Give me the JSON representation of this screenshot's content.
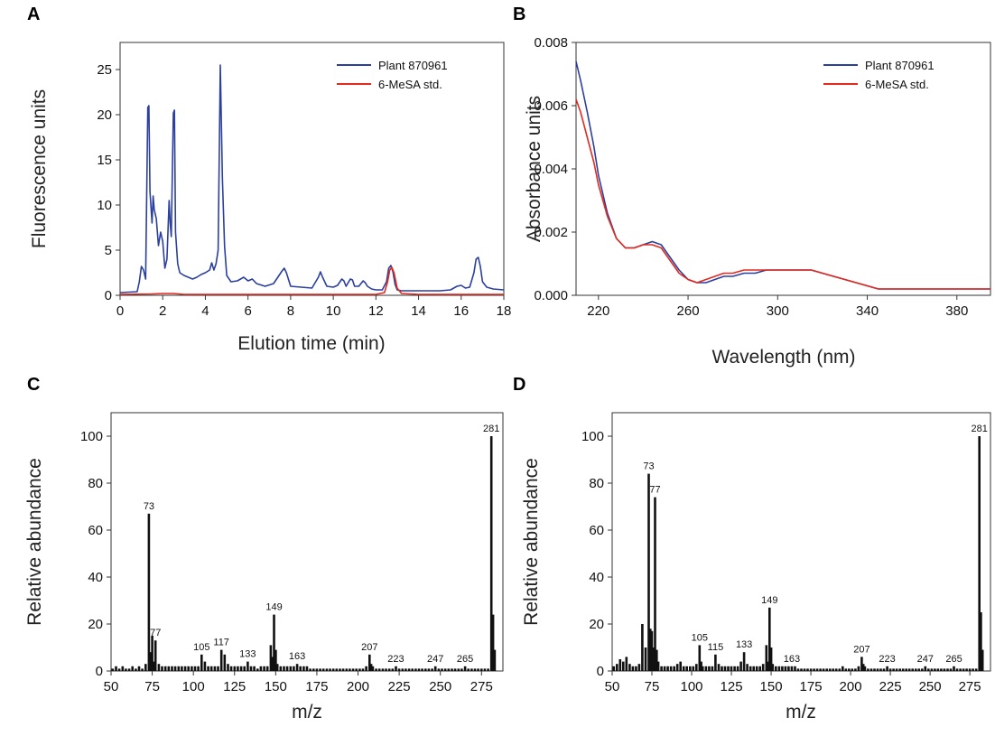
{
  "chart_data": [
    {
      "id": "A",
      "panel_label": "A",
      "type": "line",
      "xlabel": "Elution time (min)",
      "ylabel": "Fluorescence units",
      "xlim": [
        0,
        18
      ],
      "ylim": [
        0,
        28
      ],
      "xticks": [
        "0",
        "2",
        "4",
        "6",
        "8",
        "10",
        "12",
        "14",
        "16",
        "18"
      ],
      "yticks": [
        "0",
        "5",
        "10",
        "15",
        "20",
        "25"
      ],
      "legend_position": "top-right",
      "series": [
        {
          "name": "Plant 870961",
          "color": "#2b3f9e",
          "x": [
            0,
            0.8,
            0.9,
            1.0,
            1.1,
            1.2,
            1.3,
            1.35,
            1.4,
            1.5,
            1.55,
            1.6,
            1.7,
            1.8,
            1.9,
            2.0,
            2.1,
            2.2,
            2.3,
            2.35,
            2.4,
            2.5,
            2.55,
            2.6,
            2.7,
            2.8,
            3.0,
            3.2,
            3.4,
            3.6,
            3.8,
            4.0,
            4.2,
            4.3,
            4.4,
            4.5,
            4.6,
            4.7,
            4.8,
            4.9,
            5.0,
            5.2,
            5.5,
            5.8,
            6.0,
            6.2,
            6.4,
            6.8,
            7.2,
            7.6,
            7.7,
            7.8,
            8.0,
            8.5,
            9.0,
            9.3,
            9.4,
            9.5,
            9.7,
            10.0,
            10.2,
            10.4,
            10.5,
            10.6,
            10.8,
            10.9,
            11.0,
            11.2,
            11.4,
            11.5,
            11.6,
            11.8,
            12.0,
            12.3,
            12.5,
            12.6,
            12.7,
            12.8,
            12.9,
            13.0,
            13.2,
            13.5,
            14.0,
            14.5,
            15.0,
            15.5,
            15.8,
            16.0,
            16.2,
            16.4,
            16.6,
            16.7,
            16.8,
            16.9,
            17.0,
            17.2,
            17.5,
            18.0
          ],
          "values": [
            0.3,
            0.4,
            1.5,
            3.2,
            2.8,
            1.8,
            20.8,
            21.0,
            11.5,
            8.0,
            11.0,
            9.5,
            8.5,
            5.5,
            7.0,
            6.0,
            3.0,
            4.0,
            10.5,
            8.0,
            6.5,
            20.2,
            20.5,
            7.0,
            3.5,
            2.5,
            2.2,
            2.0,
            1.8,
            2.0,
            2.3,
            2.5,
            2.8,
            3.6,
            2.8,
            3.5,
            5.0,
            25.5,
            13.0,
            5.5,
            2.2,
            1.5,
            1.6,
            2.0,
            1.6,
            1.8,
            1.3,
            1.0,
            1.3,
            2.7,
            3.0,
            2.5,
            1.0,
            0.9,
            0.8,
            2.0,
            2.6,
            2.0,
            1.0,
            0.9,
            1.1,
            1.8,
            1.6,
            1.0,
            1.8,
            1.7,
            1.0,
            1.0,
            1.6,
            1.4,
            1.0,
            0.7,
            0.6,
            0.6,
            1.5,
            3.0,
            3.3,
            2.6,
            1.2,
            0.6,
            0.5,
            0.5,
            0.5,
            0.5,
            0.5,
            0.6,
            1.0,
            1.1,
            0.8,
            0.9,
            2.5,
            4.0,
            4.2,
            3.2,
            1.5,
            0.9,
            0.7,
            0.6
          ]
        },
        {
          "name": "6-MeSA std.",
          "color": "#e22a1f",
          "x": [
            0,
            1.5,
            2.0,
            2.5,
            3.0,
            4.0,
            5.0,
            6.0,
            8.0,
            10.0,
            12.0,
            12.4,
            12.55,
            12.65,
            12.75,
            12.85,
            13.0,
            13.2,
            14.0,
            16.0,
            18.0
          ],
          "values": [
            0.1,
            0.15,
            0.2,
            0.2,
            0.1,
            0.1,
            0.1,
            0.1,
            0.1,
            0.1,
            0.1,
            0.3,
            1.5,
            2.8,
            3.1,
            2.5,
            0.8,
            0.2,
            0.1,
            0.1,
            0.1
          ]
        }
      ]
    },
    {
      "id": "B",
      "panel_label": "B",
      "type": "line",
      "xlabel": "Wavelength (nm)",
      "ylabel": "Absorbance units",
      "xlim": [
        210,
        395
      ],
      "ylim": [
        0,
        0.008
      ],
      "xticks": [
        "220",
        "260",
        "300",
        "340",
        "380"
      ],
      "yticks": [
        "0.000",
        "0.002",
        "0.004",
        "0.006",
        "0.008"
      ],
      "legend_position": "top-right",
      "series": [
        {
          "name": "Plant 870961",
          "color": "#2b3f9e",
          "x": [
            210,
            212,
            215,
            218,
            220,
            224,
            228,
            232,
            236,
            240,
            244,
            248,
            252,
            256,
            260,
            264,
            268,
            272,
            276,
            280,
            285,
            290,
            295,
            300,
            305,
            310,
            315,
            320,
            325,
            330,
            335,
            340,
            345,
            350,
            360,
            370,
            380,
            390,
            395
          ],
          "values": [
            0.0074,
            0.0068,
            0.0058,
            0.0047,
            0.0038,
            0.0026,
            0.0018,
            0.0015,
            0.0015,
            0.0016,
            0.0017,
            0.0016,
            0.0012,
            0.0008,
            0.0005,
            0.0004,
            0.0004,
            0.0005,
            0.0006,
            0.0006,
            0.0007,
            0.0007,
            0.0008,
            0.0008,
            0.0008,
            0.0008,
            0.0008,
            0.0007,
            0.0006,
            0.0005,
            0.0004,
            0.0003,
            0.0002,
            0.0002,
            0.0002,
            0.0002,
            0.0002,
            0.0002,
            0.0002
          ]
        },
        {
          "name": "6-MeSA std.",
          "color": "#e22a1f",
          "x": [
            210,
            212,
            215,
            218,
            220,
            224,
            228,
            232,
            236,
            240,
            244,
            248,
            252,
            256,
            260,
            264,
            268,
            272,
            276,
            280,
            285,
            290,
            295,
            300,
            305,
            310,
            315,
            320,
            325,
            330,
            335,
            340,
            345,
            350,
            360,
            370,
            380,
            390,
            395
          ],
          "values": [
            0.0062,
            0.0058,
            0.005,
            0.0042,
            0.0035,
            0.0025,
            0.0018,
            0.0015,
            0.0015,
            0.0016,
            0.0016,
            0.0015,
            0.0011,
            0.0007,
            0.0005,
            0.0004,
            0.0005,
            0.0006,
            0.0007,
            0.0007,
            0.0008,
            0.0008,
            0.0008,
            0.0008,
            0.0008,
            0.0008,
            0.0008,
            0.0007,
            0.0006,
            0.0005,
            0.0004,
            0.0003,
            0.0002,
            0.0002,
            0.0002,
            0.0002,
            0.0002,
            0.0002,
            0.0002
          ]
        }
      ]
    },
    {
      "id": "C",
      "panel_label": "C",
      "type": "bar",
      "xlabel": "m/z",
      "ylabel": "Relative abundance",
      "xlim": [
        50,
        288
      ],
      "ylim": [
        0,
        110
      ],
      "xticks": [
        "50",
        "75",
        "100",
        "125",
        "150",
        "175",
        "200",
        "225",
        "250",
        "275"
      ],
      "yticks": [
        "0",
        "20",
        "40",
        "60",
        "80",
        "100"
      ],
      "bar_color": "#111111",
      "x": [
        51,
        53,
        55,
        57,
        59,
        61,
        63,
        65,
        67,
        69,
        71,
        73,
        74,
        75,
        76,
        77,
        79,
        81,
        83,
        85,
        87,
        89,
        91,
        93,
        95,
        97,
        99,
        101,
        103,
        105,
        107,
        109,
        111,
        113,
        115,
        117,
        119,
        121,
        123,
        125,
        127,
        129,
        131,
        133,
        135,
        137,
        139,
        141,
        143,
        145,
        147,
        148,
        149,
        150,
        151,
        153,
        155,
        157,
        159,
        161,
        163,
        165,
        167,
        169,
        171,
        173,
        175,
        177,
        179,
        181,
        183,
        185,
        187,
        189,
        191,
        193,
        195,
        197,
        199,
        201,
        203,
        205,
        207,
        208,
        209,
        211,
        213,
        215,
        217,
        219,
        221,
        223,
        225,
        227,
        229,
        231,
        233,
        235,
        237,
        239,
        241,
        243,
        245,
        247,
        249,
        251,
        253,
        255,
        257,
        259,
        261,
        263,
        265,
        267,
        269,
        271,
        273,
        275,
        277,
        279,
        281,
        282,
        283
      ],
      "values": [
        1,
        2,
        1,
        2,
        1,
        1,
        2,
        1,
        2,
        1,
        3,
        67,
        8,
        15,
        4,
        13,
        3,
        2,
        2,
        2,
        2,
        2,
        2,
        2,
        2,
        2,
        2,
        2,
        2,
        7,
        4,
        2,
        2,
        2,
        2,
        9,
        7,
        3,
        2,
        2,
        2,
        2,
        2,
        4,
        2,
        2,
        1,
        2,
        2,
        2,
        11,
        6,
        24,
        9,
        3,
        2,
        2,
        2,
        2,
        2,
        3,
        2,
        2,
        2,
        1,
        1,
        1,
        1,
        1,
        1,
        1,
        1,
        1,
        1,
        1,
        1,
        1,
        1,
        1,
        1,
        1,
        2,
        7,
        3,
        2,
        1,
        1,
        1,
        1,
        1,
        1,
        2,
        1,
        1,
        1,
        1,
        1,
        1,
        1,
        1,
        1,
        1,
        1,
        2,
        1,
        1,
        1,
        1,
        1,
        1,
        1,
        1,
        2,
        1,
        1,
        1,
        1,
        1,
        1,
        1,
        100,
        24,
        9
      ],
      "peak_labels": [
        {
          "x": 73,
          "y": 67,
          "text": "73"
        },
        {
          "x": 77,
          "y": 13,
          "text": "77"
        },
        {
          "x": 105,
          "y": 7,
          "text": "105"
        },
        {
          "x": 117,
          "y": 9,
          "text": "117"
        },
        {
          "x": 133,
          "y": 4,
          "text": "133"
        },
        {
          "x": 149,
          "y": 24,
          "text": "149"
        },
        {
          "x": 163,
          "y": 3,
          "text": "163"
        },
        {
          "x": 207,
          "y": 7,
          "text": "207"
        },
        {
          "x": 223,
          "y": 2,
          "text": "223"
        },
        {
          "x": 247,
          "y": 2,
          "text": "247"
        },
        {
          "x": 265,
          "y": 2,
          "text": "265"
        },
        {
          "x": 281,
          "y": 100,
          "text": "281"
        }
      ]
    },
    {
      "id": "D",
      "panel_label": "D",
      "type": "bar",
      "xlabel": "m/z",
      "ylabel": "Relative abundance",
      "xlim": [
        50,
        288
      ],
      "ylim": [
        0,
        110
      ],
      "xticks": [
        "50",
        "75",
        "100",
        "125",
        "150",
        "175",
        "200",
        "225",
        "250",
        "275"
      ],
      "yticks": [
        "0",
        "20",
        "40",
        "60",
        "80",
        "100"
      ],
      "bar_color": "#111111",
      "x": [
        51,
        53,
        55,
        57,
        59,
        61,
        63,
        65,
        67,
        69,
        71,
        73,
        74,
        75,
        76,
        77,
        78,
        79,
        81,
        83,
        85,
        87,
        89,
        91,
        93,
        95,
        97,
        99,
        101,
        103,
        105,
        106,
        107,
        109,
        111,
        113,
        115,
        117,
        119,
        121,
        123,
        125,
        127,
        129,
        131,
        133,
        135,
        137,
        139,
        141,
        143,
        145,
        147,
        148,
        149,
        150,
        151,
        153,
        155,
        157,
        159,
        161,
        163,
        165,
        167,
        169,
        171,
        173,
        175,
        177,
        179,
        181,
        183,
        185,
        187,
        189,
        191,
        193,
        195,
        197,
        199,
        201,
        203,
        205,
        207,
        208,
        209,
        211,
        213,
        215,
        217,
        219,
        221,
        223,
        225,
        227,
        229,
        231,
        233,
        235,
        237,
        239,
        241,
        243,
        245,
        247,
        249,
        251,
        253,
        255,
        257,
        259,
        261,
        263,
        265,
        267,
        269,
        271,
        273,
        275,
        277,
        279,
        281,
        282,
        283
      ],
      "values": [
        2,
        3,
        5,
        4,
        6,
        3,
        2,
        2,
        3,
        20,
        10,
        84,
        18,
        17,
        10,
        74,
        9,
        4,
        2,
        2,
        2,
        2,
        2,
        3,
        4,
        2,
        2,
        2,
        2,
        3,
        11,
        4,
        2,
        2,
        2,
        2,
        7,
        3,
        2,
        2,
        2,
        2,
        2,
        2,
        4,
        8,
        3,
        2,
        2,
        2,
        2,
        3,
        11,
        4,
        27,
        10,
        3,
        2,
        2,
        2,
        2,
        2,
        2,
        2,
        1,
        1,
        1,
        1,
        1,
        1,
        1,
        1,
        1,
        1,
        1,
        1,
        1,
        1,
        2,
        1,
        1,
        1,
        1,
        2,
        6,
        3,
        2,
        1,
        1,
        1,
        1,
        1,
        1,
        2,
        1,
        1,
        1,
        1,
        1,
        1,
        1,
        1,
        1,
        1,
        1,
        2,
        1,
        1,
        1,
        1,
        1,
        1,
        1,
        1,
        2,
        1,
        1,
        1,
        1,
        1,
        1,
        1,
        100,
        25,
        9
      ],
      "peak_labels": [
        {
          "x": 73,
          "y": 84,
          "text": "73"
        },
        {
          "x": 77,
          "y": 74,
          "text": "77"
        },
        {
          "x": 105,
          "y": 11,
          "text": "105"
        },
        {
          "x": 115,
          "y": 7,
          "text": "115"
        },
        {
          "x": 133,
          "y": 8,
          "text": "133"
        },
        {
          "x": 149,
          "y": 27,
          "text": "149"
        },
        {
          "x": 163,
          "y": 2,
          "text": "163"
        },
        {
          "x": 207,
          "y": 6,
          "text": "207"
        },
        {
          "x": 223,
          "y": 2,
          "text": "223"
        },
        {
          "x": 247,
          "y": 2,
          "text": "247"
        },
        {
          "x": 265,
          "y": 2,
          "text": "265"
        },
        {
          "x": 281,
          "y": 100,
          "text": "281"
        }
      ]
    }
  ]
}
